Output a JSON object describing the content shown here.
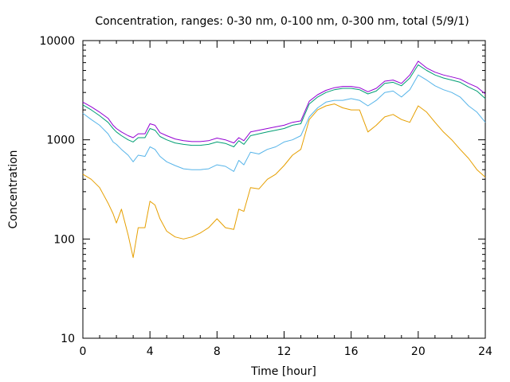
{
  "chart_data": {
    "type": "line",
    "title": "Concentration, ranges: 0-30 nm, 0-100 nm, 0-300 nm, total (5/9/1)",
    "xlabel": "Time [hour]",
    "ylabel": "Concentration",
    "xlim": [
      0,
      24
    ],
    "ylim": [
      10,
      10000
    ],
    "yscale": "log",
    "x_ticks": [
      0,
      4,
      8,
      12,
      16,
      20,
      24
    ],
    "x_tick_labels": [
      "0",
      "4",
      "8",
      "12",
      "16",
      "20",
      "24"
    ],
    "y_ticks": [
      10,
      100,
      1000,
      10000
    ],
    "y_tick_labels": [
      "10",
      "100",
      "1000",
      "10000"
    ],
    "grid": false,
    "x": [
      0,
      0.5,
      1,
      1.5,
      1.8,
      2.0,
      2.3,
      2.7,
      3.0,
      3.3,
      3.7,
      4.0,
      4.3,
      4.6,
      5.0,
      5.5,
      6.0,
      6.5,
      7.0,
      7.5,
      8.0,
      8.5,
      9.0,
      9.3,
      9.6,
      10.0,
      10.5,
      11.0,
      11.5,
      12.0,
      12.5,
      13.0,
      13.5,
      14.0,
      14.5,
      15.0,
      15.5,
      16.0,
      16.5,
      17.0,
      17.5,
      18.0,
      18.5,
      19.0,
      19.5,
      20.0,
      20.5,
      21.0,
      21.5,
      22.0,
      22.5,
      23.0,
      23.5,
      24.0
    ],
    "series": [
      {
        "name": "0-30 nm",
        "color": "#e69f00",
        "values": [
          450,
          400,
          330,
          230,
          180,
          145,
          200,
          110,
          65,
          130,
          130,
          240,
          220,
          160,
          120,
          105,
          100,
          105,
          115,
          130,
          160,
          130,
          125,
          200,
          190,
          330,
          320,
          400,
          450,
          550,
          700,
          800,
          1600,
          2000,
          2200,
          2300,
          2100,
          2000,
          2000,
          1200,
          1400,
          1700,
          1800,
          1600,
          1500,
          2200,
          1900,
          1500,
          1200,
          1000,
          800,
          650,
          500,
          420
        ]
      },
      {
        "name": "0-100 nm",
        "color": "#56b4e9",
        "values": [
          1850,
          1600,
          1400,
          1150,
          950,
          900,
          800,
          700,
          600,
          700,
          680,
          850,
          800,
          680,
          600,
          550,
          510,
          500,
          500,
          510,
          560,
          540,
          480,
          620,
          560,
          750,
          720,
          800,
          850,
          950,
          1000,
          1100,
          1700,
          2100,
          2400,
          2500,
          2500,
          2600,
          2500,
          2200,
          2500,
          3000,
          3100,
          2700,
          3200,
          4500,
          4000,
          3500,
          3200,
          3000,
          2700,
          2200,
          1900,
          1500
        ]
      },
      {
        "name": "0-300 nm",
        "color": "#009e73",
        "values": [
          2250,
          2000,
          1750,
          1500,
          1300,
          1200,
          1100,
          1000,
          950,
          1050,
          1050,
          1300,
          1250,
          1080,
          1000,
          930,
          900,
          880,
          880,
          900,
          950,
          920,
          850,
          980,
          900,
          1100,
          1150,
          1200,
          1250,
          1300,
          1400,
          1450,
          2300,
          2700,
          3000,
          3200,
          3300,
          3300,
          3200,
          2900,
          3100,
          3700,
          3800,
          3500,
          4200,
          5700,
          5000,
          4500,
          4200,
          4000,
          3800,
          3400,
          3100,
          2600
        ]
      },
      {
        "name": "total",
        "color": "#9400d3",
        "values": [
          2400,
          2150,
          1900,
          1650,
          1400,
          1300,
          1200,
          1100,
          1050,
          1150,
          1150,
          1450,
          1400,
          1180,
          1100,
          1020,
          980,
          960,
          960,
          980,
          1040,
          1000,
          930,
          1050,
          980,
          1200,
          1250,
          1300,
          1350,
          1400,
          1500,
          1550,
          2450,
          2850,
          3150,
          3350,
          3450,
          3450,
          3350,
          3050,
          3300,
          3900,
          4000,
          3700,
          4500,
          6200,
          5300,
          4800,
          4500,
          4300,
          4100,
          3700,
          3400,
          2900
        ]
      }
    ]
  }
}
